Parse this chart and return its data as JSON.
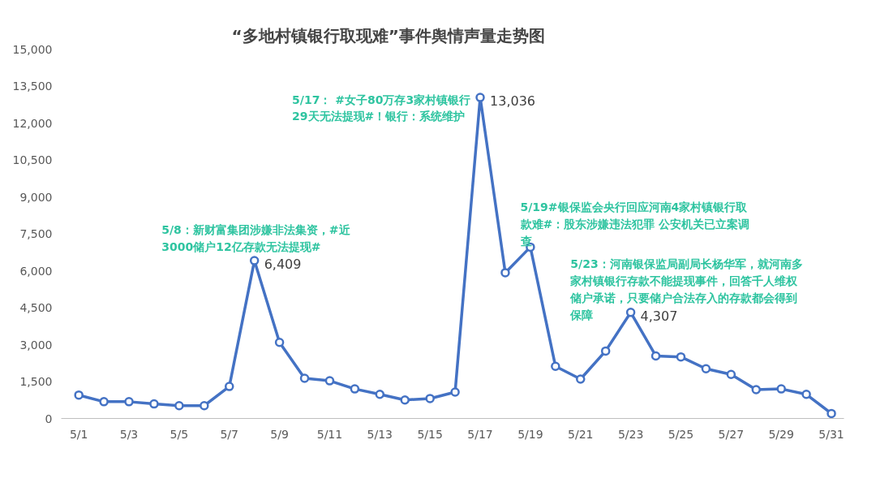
{
  "chart_data": {
    "type": "line",
    "title": "“多地村镇银行取现难”事件舆情声量走势图",
    "categories": [
      "5/1",
      null,
      "5/3",
      null,
      "5/5",
      null,
      "5/7",
      null,
      "5/9",
      null,
      "5/11",
      null,
      "5/13",
      null,
      "5/15",
      null,
      "5/17",
      null,
      "5/19",
      null,
      "5/21",
      null,
      "5/23",
      null,
      "5/25",
      null,
      "5/27",
      null,
      "5/29",
      null,
      "5/31"
    ],
    "series": [
      {
        "color": "#4472c4",
        "values": [
          950,
          680,
          680,
          590,
          520,
          520,
          1300,
          6409,
          3090,
          1630,
          1530,
          1200,
          980,
          750,
          810,
          1070,
          13036,
          5920,
          6960,
          2120,
          1600,
          2740,
          4307,
          2540,
          2500,
          2020,
          1790,
          1170,
          1200,
          980,
          200
        ],
        "value_labels": [
          null,
          null,
          null,
          null,
          null,
          null,
          null,
          "6,409",
          null,
          null,
          null,
          null,
          null,
          null,
          null,
          null,
          "13,036",
          null,
          null,
          null,
          null,
          null,
          "4,307",
          null,
          null,
          null,
          null,
          null,
          null,
          null,
          null
        ]
      }
    ],
    "ylim": [
      0,
      15000
    ],
    "yticks": [
      0,
      {
        "value": 1500,
        "label": "1,500"
      },
      {
        "value": 3000,
        "label": "3,000"
      },
      {
        "value": 4500,
        "label": "4,500"
      },
      {
        "value": 6000,
        "label": "6,000"
      },
      {
        "value": 7500,
        "label": "7,500"
      },
      {
        "value": 9000,
        "label": "9,000"
      },
      {
        "value": 10500,
        "label": "10,500"
      },
      {
        "value": 12000,
        "label": "12,000"
      },
      {
        "value": 13500,
        "label": "13,500"
      },
      {
        "value": 15000,
        "label": "15,000"
      }
    ],
    "marker": "circle",
    "line_style": "solid",
    "grid": false,
    "annotations": [
      "5/8：新财富集团涉嫌非法集资，#近\n3000储户12亿存款无法提现#",
      "5/17： #女子80万存3家村镇银行\n29天无法提现#！银行：系统维护",
      "5/19#银保监会央行回应河南4家村镇银行取款难#：股东涉嫌违法犯罪 公安机关已立案调查",
      "5/23：河南银保监局副局长杨华军，就河南多家村镇银行存款不能提现事件，回答千人维权储户承诺，只要储户合法存入的存款都会得到保障"
    ]
  }
}
